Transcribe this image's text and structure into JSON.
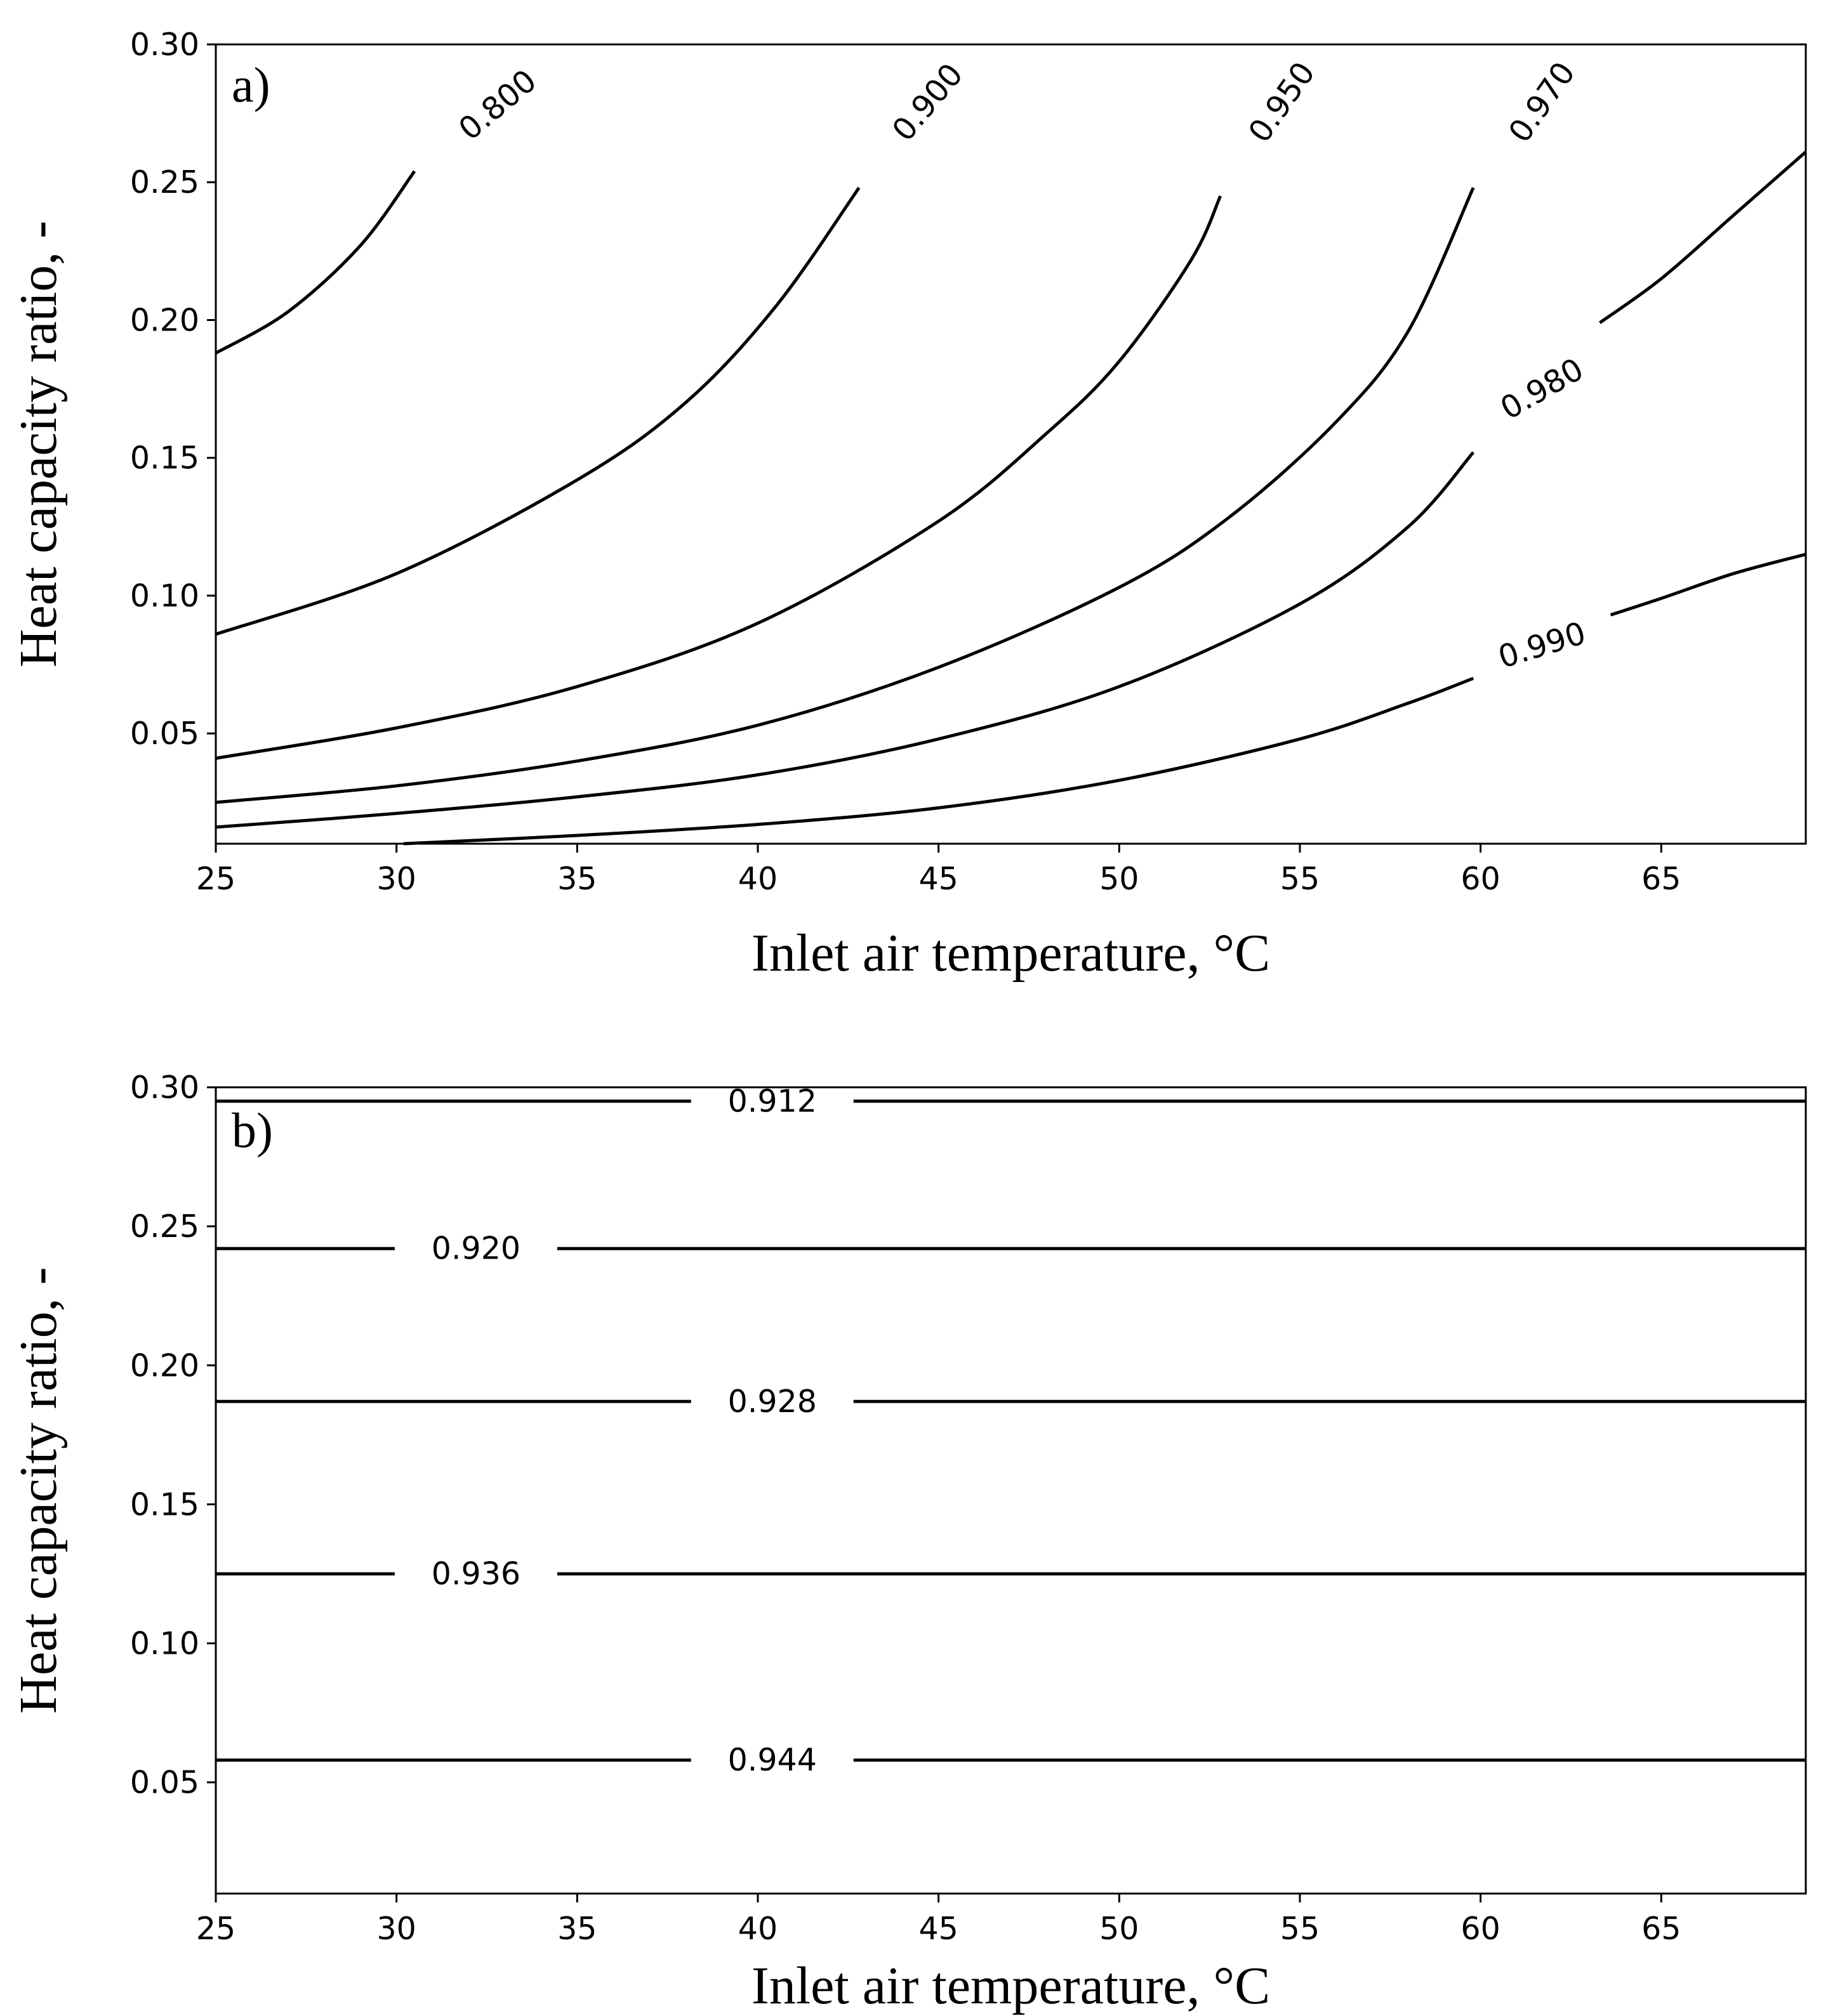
{
  "chart_data": [
    {
      "type": "contour",
      "panel": "a)",
      "xlabel": "Inlet air temperature, °C",
      "ylabel": "Heat capacity ratio, -",
      "xlim": [
        25,
        69
      ],
      "ylim": [
        0.01,
        0.3
      ],
      "xticks": [
        25,
        30,
        35,
        40,
        45,
        50,
        55,
        60,
        65
      ],
      "yticks": [
        0.05,
        0.1,
        0.15,
        0.2,
        0.25,
        0.3
      ],
      "xtick_labels": [
        "25",
        "30",
        "35",
        "40",
        "45",
        "50",
        "55",
        "60",
        "65"
      ],
      "ytick_labels": [
        "0.05",
        "0.10",
        "0.15",
        "0.20",
        "0.25",
        "0.30"
      ],
      "contours": [
        {
          "level": "0.800",
          "points": [
            [
              25,
              0.188
            ],
            [
              27,
              0.203
            ],
            [
              29,
              0.227
            ],
            [
              30.5,
              0.254
            ]
          ],
          "label_at": [
            32.8,
            0.278
          ],
          "label_angle": -40
        },
        {
          "level": "0.900",
          "points": [
            [
              25,
              0.086
            ],
            [
              30,
              0.108
            ],
            [
              35,
              0.142
            ],
            [
              38,
              0.17
            ],
            [
              40.5,
              0.205
            ],
            [
              42.8,
              0.248
            ]
          ],
          "label_at": [
            44.7,
            0.279
          ],
          "label_angle": -50
        },
        {
          "level": "0.950",
          "points": [
            [
              25,
              0.041
            ],
            [
              30,
              0.052
            ],
            [
              35,
              0.067
            ],
            [
              40,
              0.09
            ],
            [
              45,
              0.127
            ],
            [
              48,
              0.159
            ],
            [
              50,
              0.185
            ],
            [
              52,
              0.222
            ],
            [
              52.8,
              0.245
            ]
          ],
          "label_at": [
            54.5,
            0.279
          ],
          "label_angle": -55
        },
        {
          "level": "0.970",
          "points": [
            [
              25,
              0.025
            ],
            [
              30,
              0.031
            ],
            [
              35,
              0.04
            ],
            [
              40,
              0.053
            ],
            [
              45,
              0.074
            ],
            [
              50,
              0.103
            ],
            [
              53,
              0.128
            ],
            [
              56,
              0.163
            ],
            [
              58,
              0.196
            ],
            [
              59.8,
              0.248
            ]
          ],
          "label_at": [
            61.7,
            0.279
          ],
          "label_angle": -55
        },
        {
          "level": "0.980",
          "points": [
            [
              25,
              0.016
            ],
            [
              30,
              0.021
            ],
            [
              35,
              0.027
            ],
            [
              40,
              0.035
            ],
            [
              45,
              0.048
            ],
            [
              50,
              0.067
            ],
            [
              55,
              0.097
            ],
            [
              58,
              0.125
            ],
            [
              59.8,
              0.152
            ]
          ],
          "label_at": [
            61.7,
            0.175
          ],
          "label_angle": -30
        },
        {
          "level": "0.980",
          "points": [
            [
              63.3,
              0.199
            ],
            [
              65,
              0.215
            ],
            [
              67,
              0.238
            ],
            [
              69,
              0.261
            ]
          ],
          "label_at": null,
          "label_angle": 0
        },
        {
          "level": "0.990",
          "points": [
            [
              30.2,
              0.01
            ],
            [
              35,
              0.013
            ],
            [
              40,
              0.017
            ],
            [
              45,
              0.023
            ],
            [
              50,
              0.033
            ],
            [
              55,
              0.048
            ],
            [
              58,
              0.061
            ],
            [
              59.8,
              0.07
            ]
          ],
          "label_at": [
            61.7,
            0.082
          ],
          "label_angle": -17
        },
        {
          "level": "0.990",
          "points": [
            [
              63.6,
              0.093
            ],
            [
              65,
              0.099
            ],
            [
              67,
              0.108
            ],
            [
              69,
              0.115
            ]
          ],
          "label_at": null,
          "label_angle": 0
        }
      ]
    },
    {
      "type": "contour",
      "panel": "b)",
      "xlabel": "Inlet air temperature, °C",
      "ylabel": "Heat capacity ratio, -",
      "xlim": [
        25,
        69
      ],
      "ylim": [
        0.01,
        0.3
      ],
      "xticks": [
        25,
        30,
        35,
        40,
        45,
        50,
        55,
        60,
        65
      ],
      "yticks": [
        0.05,
        0.1,
        0.15,
        0.2,
        0.25,
        0.3
      ],
      "xtick_labels": [
        "25",
        "30",
        "35",
        "40",
        "45",
        "50",
        "55",
        "60",
        "65"
      ],
      "ytick_labels": [
        "0.05",
        "0.10",
        "0.15",
        "0.20",
        "0.25",
        "0.30"
      ],
      "contours": [
        {
          "level": "0.912",
          "y": 0.295,
          "label_x": 40.4
        },
        {
          "level": "0.920",
          "y": 0.242,
          "label_x": 32.2
        },
        {
          "level": "0.928",
          "y": 0.187,
          "label_x": 40.4
        },
        {
          "level": "0.936",
          "y": 0.125,
          "label_x": 32.2
        },
        {
          "level": "0.944",
          "y": 0.058,
          "label_x": 40.4
        }
      ]
    }
  ]
}
